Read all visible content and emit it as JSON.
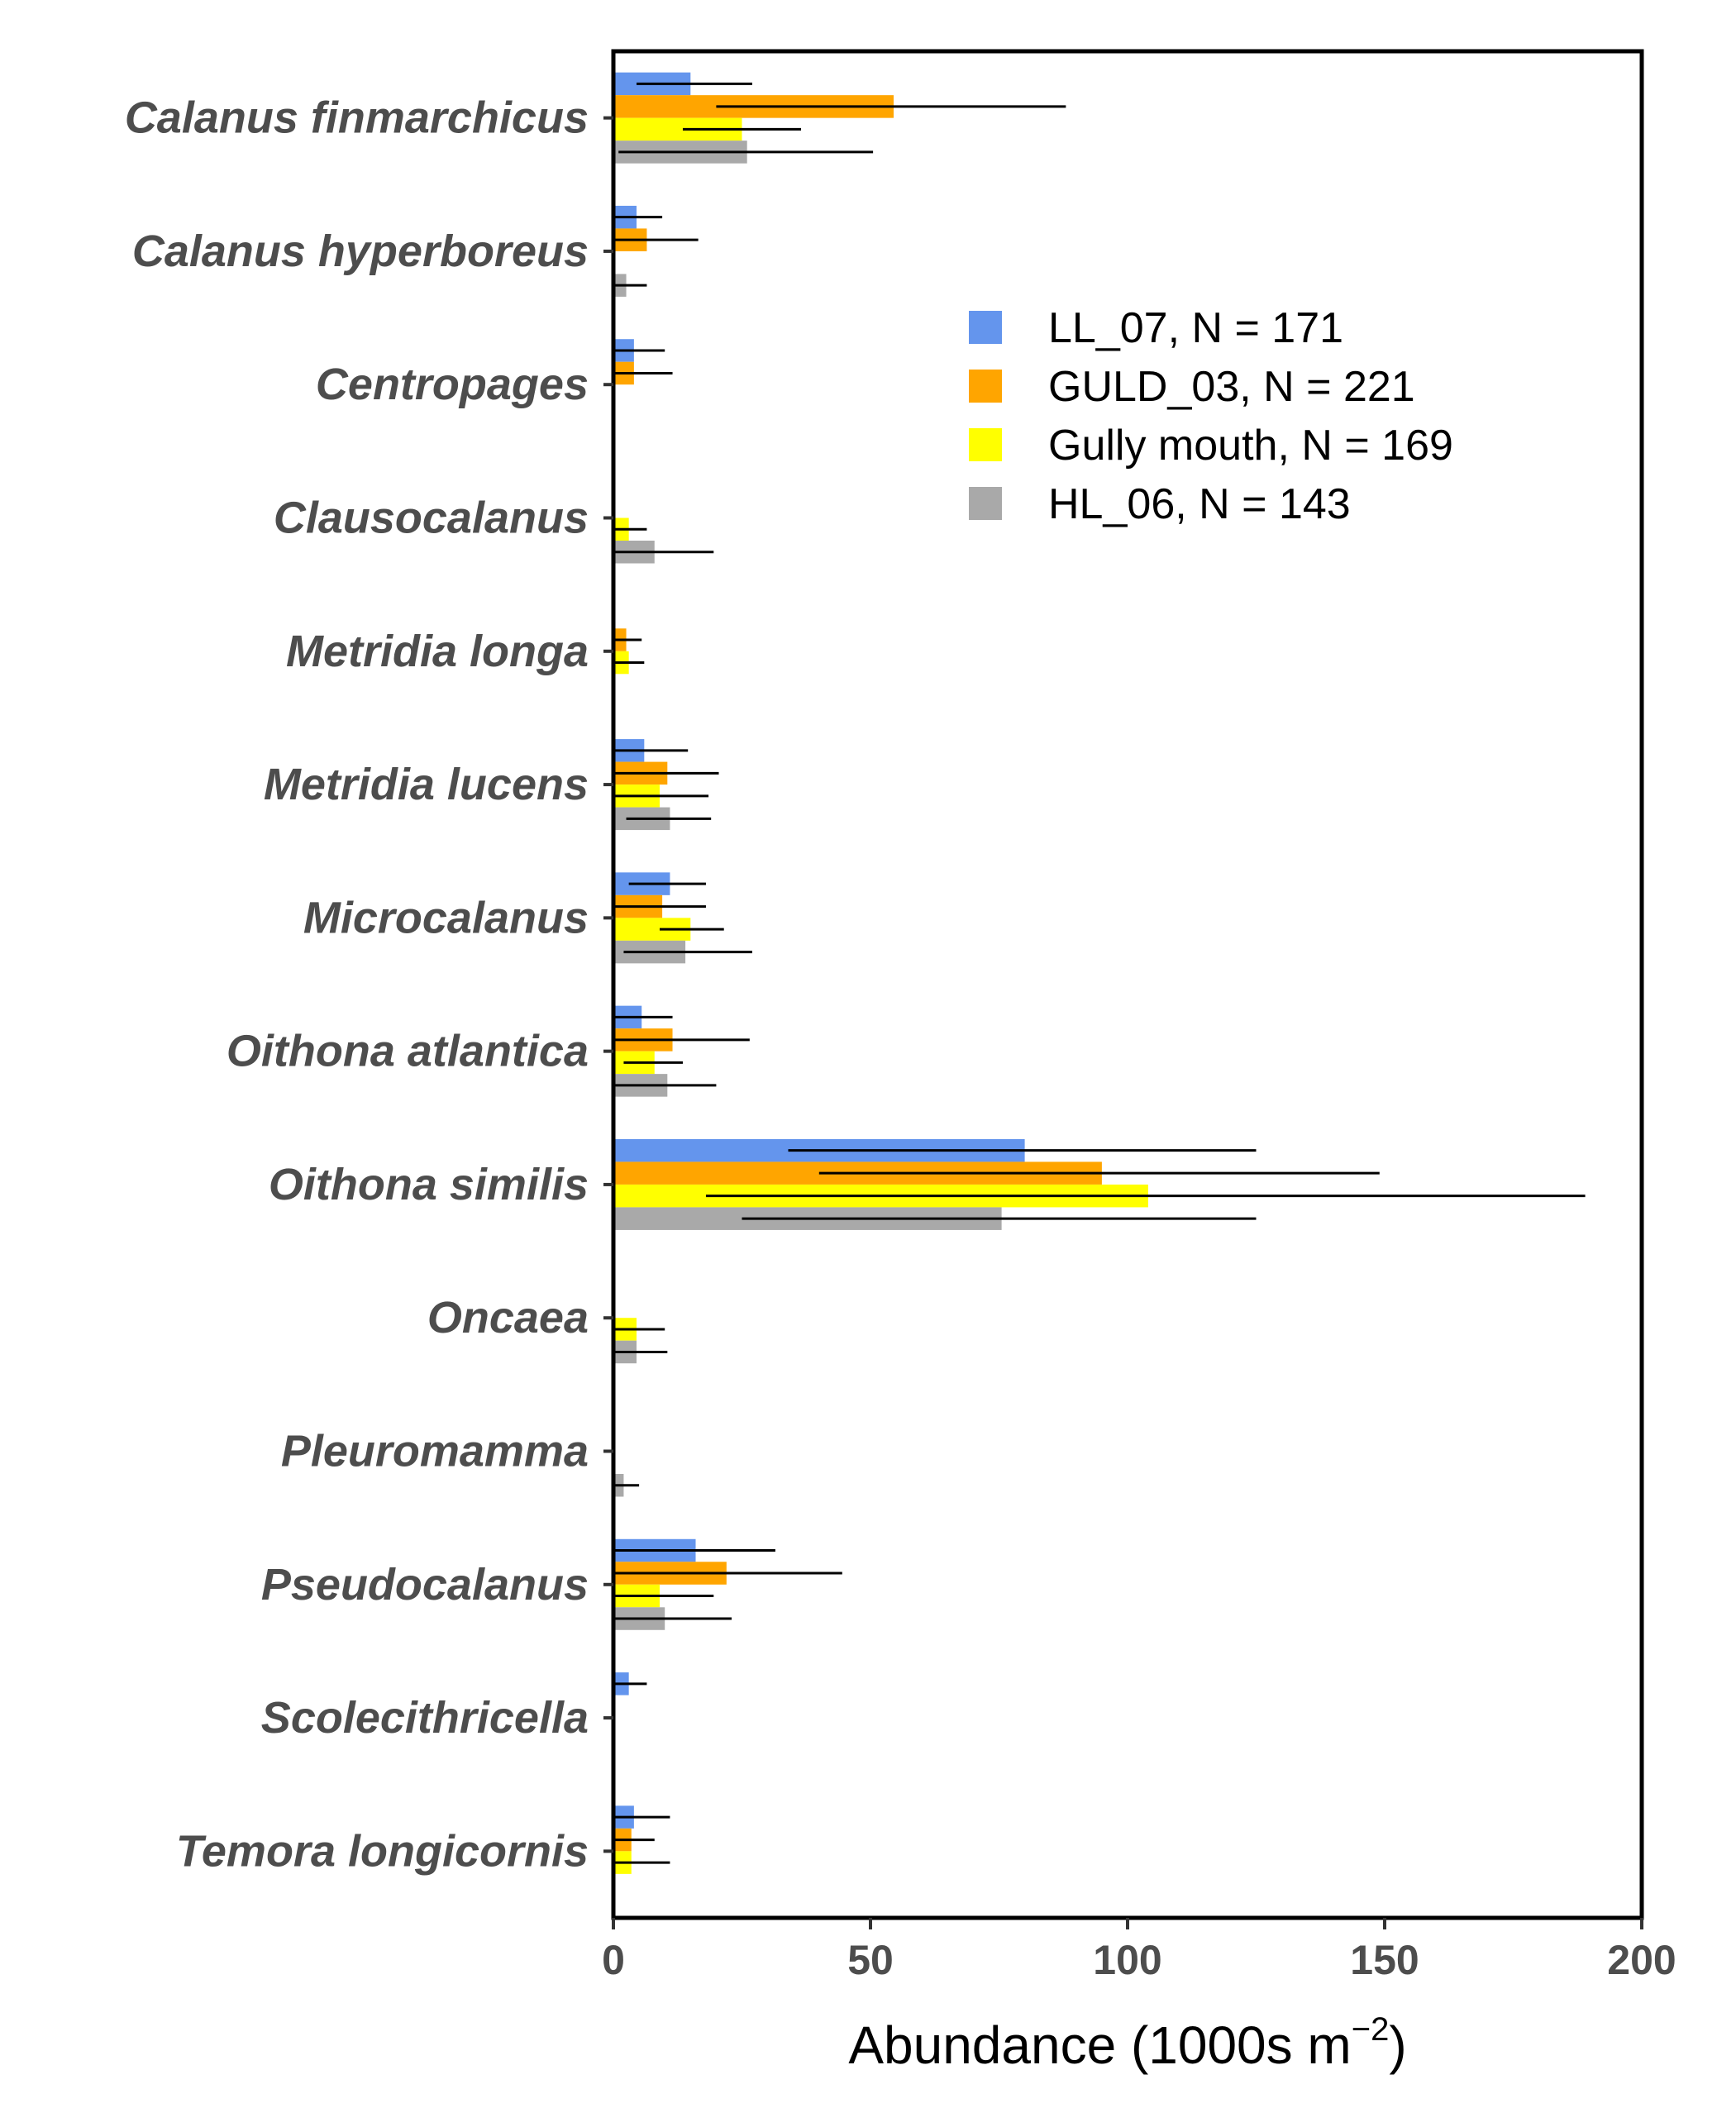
{
  "chart_data": {
    "type": "bar",
    "orientation": "horizontal",
    "categories": [
      "Calanus finmarchicus",
      "Calanus hyperboreus",
      "Centropages",
      "Clausocalanus",
      "Metridia longa",
      "Metridia lucens",
      "Microcalanus",
      "Oithona atlantica",
      "Oithona similis",
      "Oncaea",
      "Pleuromamma",
      "Pseudocalanus",
      "Scolecithricella",
      "Temora longicornis"
    ],
    "series": [
      {
        "name": "LL_07, N = 171",
        "color": "#6495ED",
        "values": [
          15,
          4.5,
          4,
          0,
          0,
          6,
          11,
          5.5,
          80,
          0,
          0,
          16,
          3,
          4
        ],
        "error_low": [
          4.5,
          0,
          0,
          0,
          0,
          0,
          3,
          0,
          34,
          0,
          0,
          0,
          0,
          0
        ],
        "error_high": [
          27,
          9.5,
          10,
          0,
          0,
          14.5,
          18,
          11.5,
          125,
          0,
          0,
          31.5,
          6.5,
          11
        ]
      },
      {
        "name": "GULD_03, N = 221",
        "color": "#FFA500",
        "values": [
          54.5,
          6.5,
          4,
          0,
          2.5,
          10.5,
          9.5,
          11.5,
          95,
          0,
          0,
          22,
          0,
          3.5
        ],
        "error_low": [
          20,
          0,
          0,
          0,
          0,
          0,
          0,
          0,
          40,
          0,
          0,
          0,
          0,
          0
        ],
        "error_high": [
          88,
          16.5,
          11.5,
          0,
          5.5,
          20.5,
          18,
          26.5,
          149,
          0,
          0,
          44.5,
          0,
          8
        ]
      },
      {
        "name": "Gully mouth, N = 169",
        "color": "#FFFF00",
        "values": [
          25,
          0,
          0,
          3,
          3,
          9,
          15,
          8,
          104,
          4.5,
          0,
          9,
          0,
          3.5
        ],
        "error_low": [
          13.5,
          0,
          0,
          0,
          0,
          0,
          9,
          2,
          18,
          0,
          0,
          0,
          0,
          0
        ],
        "error_high": [
          36.5,
          0,
          0,
          6.5,
          6,
          18.5,
          21.5,
          13.5,
          189,
          10,
          0,
          19.5,
          0,
          11
        ]
      },
      {
        "name": "HL_06, N = 143",
        "color": "#A9A9A9",
        "values": [
          26,
          2.5,
          0,
          8,
          0,
          11,
          14,
          10.5,
          75.5,
          4.5,
          2,
          10,
          0,
          0
        ],
        "error_low": [
          1,
          0,
          0,
          0,
          0,
          2.5,
          2,
          0,
          25,
          0,
          0,
          0,
          0,
          0
        ],
        "error_high": [
          50.5,
          6.5,
          0,
          19.5,
          0,
          19,
          27,
          20,
          125,
          10.5,
          5,
          23,
          0,
          0
        ]
      }
    ],
    "xlabel": "Abundance (1000s m",
    "xlabel_superscript": "−2",
    "xlabel_suffix": ")",
    "xlim": [
      0,
      200
    ],
    "xticks": [
      0,
      50,
      100,
      150,
      200
    ],
    "legend_position": "top-right",
    "grid": false
  }
}
